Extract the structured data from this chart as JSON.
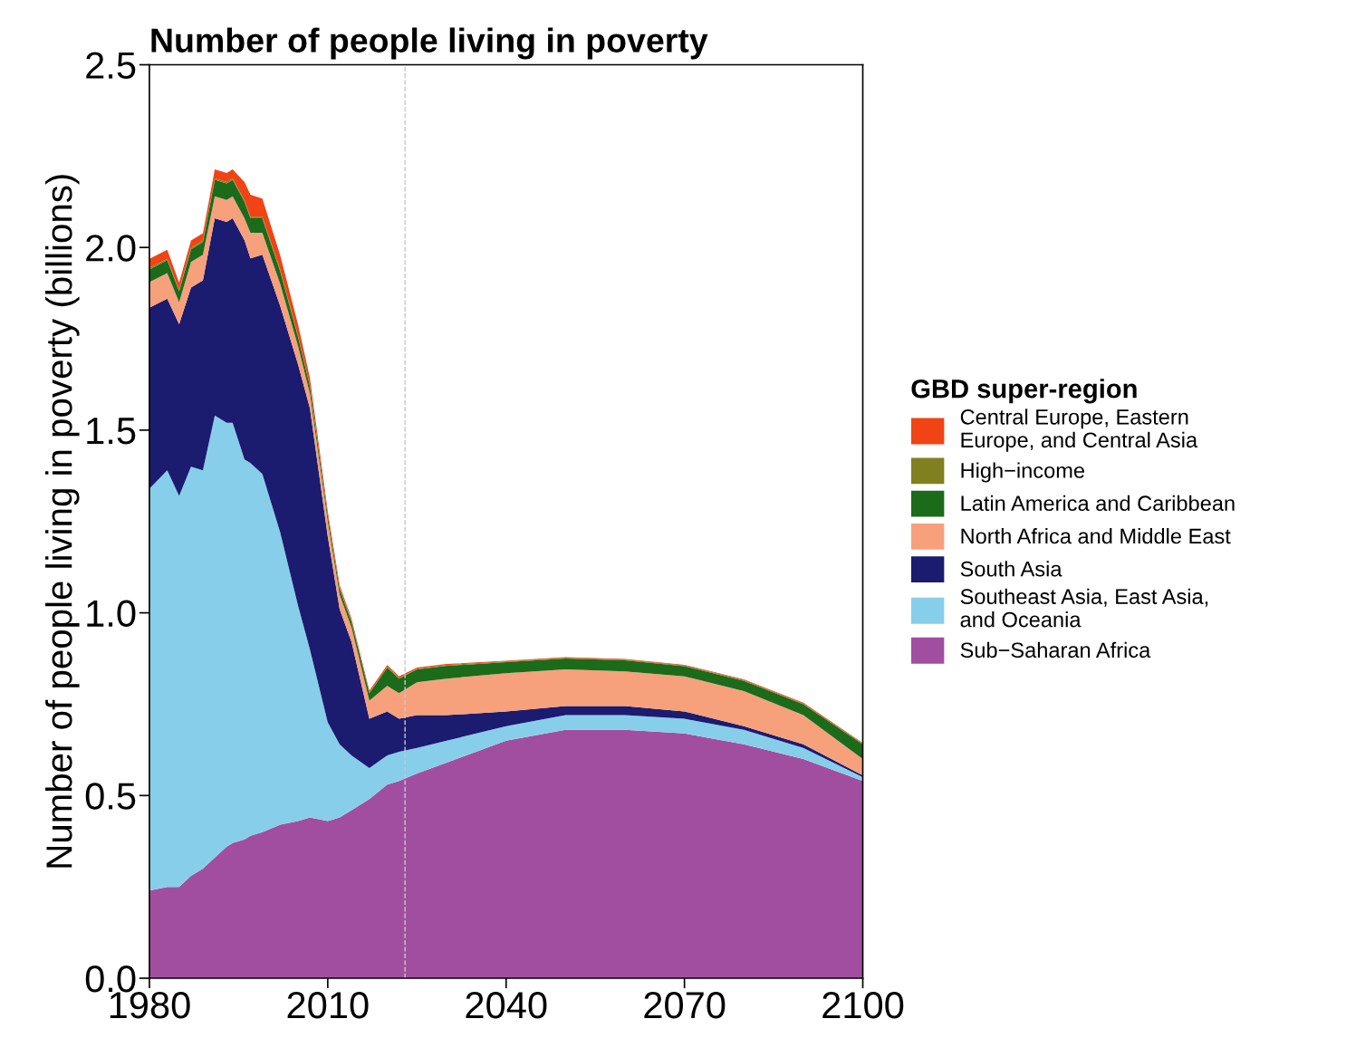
{
  "chart_data": {
    "type": "area",
    "stacked": true,
    "title": "Number of people living in poverty",
    "ylabel": "Number of people living in poverty (billions)",
    "legend_title": "GBD super-region",
    "legend": "right",
    "grid": false,
    "x": [
      1980,
      1983,
      1985,
      1987,
      1989,
      1991,
      1993,
      1994,
      1996,
      1997,
      1999,
      2002,
      2005,
      2007,
      2010,
      2012,
      2014,
      2017,
      2020,
      2022,
      2025,
      2030,
      2040,
      2050,
      2060,
      2070,
      2080,
      2090,
      2100
    ],
    "xlim": [
      1980,
      2100
    ],
    "xticks": [
      1980,
      2010,
      2040,
      2070,
      2100
    ],
    "ylim": [
      0,
      2.5
    ],
    "yticks": [
      {
        "value": 0,
        "label": "0.0"
      },
      {
        "value": 0.5,
        "label": "0.5"
      },
      {
        "value": 1,
        "label": "1.0"
      },
      {
        "value": 1.5,
        "label": "1.5"
      },
      {
        "value": 2,
        "label": "2.0"
      },
      {
        "value": 2.5,
        "label": "2.5"
      }
    ],
    "ref_lines": [
      {
        "axis": "x",
        "value": 2023,
        "color": "#c8c8c8",
        "line_style": "dashed"
      }
    ],
    "series": [
      {
        "name": "Sub−Saharan Africa",
        "color": "#a24ea0",
        "values": [
          0.24,
          0.25,
          0.25,
          0.28,
          0.3,
          0.33,
          0.36,
          0.37,
          0.38,
          0.39,
          0.4,
          0.42,
          0.43,
          0.44,
          0.43,
          0.44,
          0.46,
          0.49,
          0.53,
          0.54,
          0.56,
          0.59,
          0.65,
          0.68,
          0.68,
          0.67,
          0.64,
          0.6,
          0.54
        ]
      },
      {
        "name": "Southeast Asia, East Asia,\nand Oceania",
        "color": "#87ceeb",
        "values": [
          1.1,
          1.14,
          1.07,
          1.12,
          1.09,
          1.21,
          1.16,
          1.15,
          1.04,
          1.02,
          0.98,
          0.8,
          0.59,
          0.46,
          0.27,
          0.2,
          0.15,
          0.085,
          0.08,
          0.08,
          0.07,
          0.06,
          0.04,
          0.04,
          0.04,
          0.04,
          0.04,
          0.03,
          0.01
        ]
      },
      {
        "name": "South Asia",
        "color": "#1b1b70",
        "values": [
          0.495,
          0.47,
          0.47,
          0.49,
          0.52,
          0.54,
          0.55,
          0.56,
          0.6,
          0.56,
          0.6,
          0.62,
          0.66,
          0.66,
          0.51,
          0.37,
          0.31,
          0.135,
          0.12,
          0.09,
          0.09,
          0.07,
          0.04,
          0.025,
          0.025,
          0.02,
          0.01,
          0.01,
          0.005
        ]
      },
      {
        "name": "North Africa and Middle East",
        "color": "#f7a07c",
        "values": [
          0.07,
          0.07,
          0.06,
          0.07,
          0.07,
          0.06,
          0.06,
          0.06,
          0.06,
          0.07,
          0.06,
          0.06,
          0.05,
          0.04,
          0.04,
          0.04,
          0.04,
          0.05,
          0.07,
          0.07,
          0.09,
          0.1,
          0.105,
          0.1,
          0.095,
          0.096,
          0.096,
          0.08,
          0.045
        ]
      },
      {
        "name": "Latin America and Caribbean",
        "color": "#1b6b1b",
        "values": [
          0.035,
          0.035,
          0.03,
          0.035,
          0.035,
          0.045,
          0.045,
          0.045,
          0.045,
          0.04,
          0.04,
          0.035,
          0.025,
          0.02,
          0.015,
          0.015,
          0.015,
          0.02,
          0.05,
          0.04,
          0.035,
          0.035,
          0.03,
          0.03,
          0.03,
          0.028,
          0.028,
          0.03,
          0.04
        ]
      },
      {
        "name": "High−income",
        "color": "#808020",
        "values": [
          0.004,
          0.004,
          0.004,
          0.004,
          0.004,
          0.004,
          0.004,
          0.004,
          0.004,
          0.004,
          0.004,
          0.004,
          0.004,
          0.003,
          0.003,
          0.003,
          0.003,
          0.002,
          0.002,
          0.002,
          0.002,
          0.002,
          0.002,
          0.002,
          0.002,
          0.002,
          0.002,
          0.002,
          0.002
        ]
      },
      {
        "name": "Central Europe, Eastern\nEurope, and Central Asia",
        "color": "#f04414",
        "values": [
          0.025,
          0.025,
          0.02,
          0.02,
          0.02,
          0.025,
          0.025,
          0.025,
          0.05,
          0.06,
          0.05,
          0.04,
          0.03,
          0.02,
          0.01,
          0.008,
          0.006,
          0.005,
          0.005,
          0.004,
          0.003,
          0.003,
          0.002,
          0.002,
          0.002,
          0.002,
          0.002,
          0.002,
          0.002
        ]
      }
    ]
  }
}
